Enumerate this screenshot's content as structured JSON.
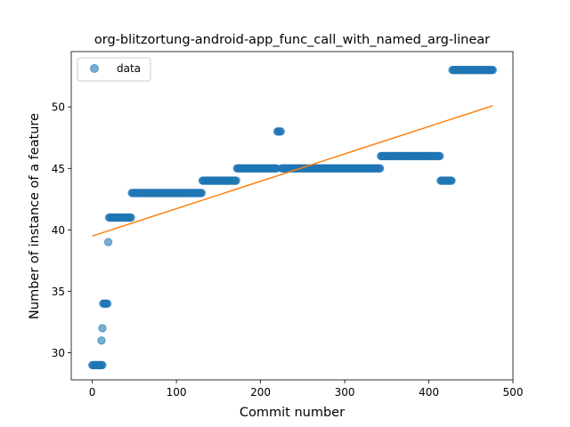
{
  "chart_data": {
    "type": "scatter",
    "title": "org-blitzortung-android-app_func_call_with_named_arg-linear",
    "xlabel": "Commit number",
    "ylabel": "Number of instance of a feature",
    "xlim": [
      -25,
      500
    ],
    "ylim": [
      27.8,
      54.5
    ],
    "xticks": [
      0,
      100,
      200,
      300,
      400,
      500
    ],
    "yticks": [
      30,
      35,
      40,
      45,
      50
    ],
    "legend": {
      "position": "top-left",
      "label": "data"
    },
    "colors": {
      "data": "#1f77b4",
      "fit": "#ff7f0e"
    },
    "series": [
      {
        "name": "data",
        "segments": [
          {
            "x_start": 0,
            "x_end": 12,
            "y": 29
          },
          {
            "x_start": 11,
            "x_end": 11,
            "y": 31
          },
          {
            "x_start": 12,
            "x_end": 12,
            "y": 32
          },
          {
            "x_start": 13,
            "x_end": 18,
            "y": 34
          },
          {
            "x_start": 19,
            "x_end": 19,
            "y": 39
          },
          {
            "x_start": 20,
            "x_end": 46,
            "y": 41
          },
          {
            "x_start": 47,
            "x_end": 130,
            "y": 43
          },
          {
            "x_start": 131,
            "x_end": 171,
            "y": 44
          },
          {
            "x_start": 172,
            "x_end": 219,
            "y": 45
          },
          {
            "x_start": 220,
            "x_end": 224,
            "y": 48
          },
          {
            "x_start": 225,
            "x_end": 342,
            "y": 45
          },
          {
            "x_start": 343,
            "x_end": 413,
            "y": 46
          },
          {
            "x_start": 414,
            "x_end": 427,
            "y": 44
          },
          {
            "x_start": 428,
            "x_end": 476,
            "y": 53
          }
        ]
      },
      {
        "name": "fit",
        "x": [
          0,
          476
        ],
        "y": [
          39.5,
          50.1
        ]
      }
    ]
  }
}
